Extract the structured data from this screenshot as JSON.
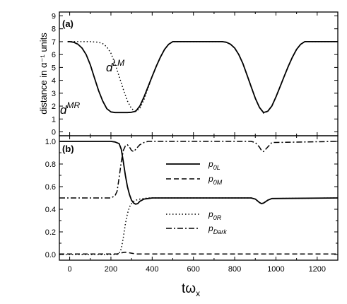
{
  "chart_data": [
    {
      "type": "line",
      "panel_label": "(a)",
      "ylabel": "distance in α⁻¹ units",
      "xlim": [
        -50,
        1300
      ],
      "ylim": [
        -0.3,
        9.3
      ],
      "yticks": [
        "0",
        "1",
        "2",
        "3",
        "4",
        "5",
        "6",
        "7",
        "8",
        "9"
      ],
      "annotations": [
        {
          "text": "d",
          "sup": "LM",
          "series": "dLM"
        },
        {
          "text": "d",
          "sup": "MR",
          "series": "dMR"
        }
      ],
      "series": [
        {
          "id": "dMR",
          "style": "solid",
          "x": [
            -10,
            0,
            20,
            40,
            60,
            80,
            100,
            120,
            140,
            160,
            180,
            200,
            220,
            240,
            260,
            280,
            300,
            320,
            340,
            360,
            380,
            400,
            420,
            440,
            460,
            480,
            500,
            520,
            740,
            760,
            780,
            800,
            820,
            840,
            860,
            880,
            900,
            920,
            940,
            960,
            980,
            1000,
            1020,
            1040,
            1060,
            1080,
            1100,
            1120,
            1140,
            1300
          ],
          "y": [
            7.0,
            7.0,
            6.95,
            6.8,
            6.5,
            6.0,
            5.2,
            4.2,
            3.2,
            2.4,
            1.8,
            1.55,
            1.5,
            1.5,
            1.5,
            1.5,
            1.52,
            1.6,
            2.0,
            2.7,
            3.5,
            4.3,
            5.1,
            5.8,
            6.4,
            6.8,
            7.0,
            7.0,
            7.0,
            6.95,
            6.8,
            6.5,
            6.0,
            5.3,
            4.4,
            3.5,
            2.6,
            1.9,
            1.5,
            1.6,
            2.0,
            2.7,
            3.5,
            4.3,
            5.1,
            5.8,
            6.4,
            6.8,
            7.0,
            7.0
          ]
        },
        {
          "id": "dLM",
          "style": "dotted",
          "x": [
            -10,
            100,
            140,
            160,
            180,
            200,
            220,
            240,
            260,
            280,
            300,
            320,
            340,
            360,
            380,
            400,
            420,
            440,
            460,
            480,
            500,
            520,
            740,
            760,
            780,
            800,
            820,
            840,
            860,
            880,
            900,
            920,
            940,
            960,
            980,
            1000,
            1020,
            1040,
            1060,
            1080,
            1100,
            1120,
            1140,
            1300
          ],
          "y": [
            7.0,
            7.0,
            6.95,
            6.85,
            6.6,
            6.1,
            5.3,
            4.3,
            3.3,
            2.4,
            1.8,
            1.6,
            1.8,
            2.5,
            3.4,
            4.3,
            5.1,
            5.8,
            6.4,
            6.8,
            7.0,
            7.0,
            7.0,
            6.95,
            6.8,
            6.5,
            6.0,
            5.3,
            4.4,
            3.5,
            2.6,
            1.9,
            1.45,
            1.6,
            2.0,
            2.7,
            3.5,
            4.3,
            5.1,
            5.8,
            6.4,
            6.8,
            7.0,
            7.0
          ]
        }
      ]
    },
    {
      "type": "line",
      "panel_label": "(b)",
      "xlabel": "tω",
      "xlabel_sub": "x",
      "xlim": [
        -50,
        1300
      ],
      "ylim": [
        -0.05,
        1.05
      ],
      "xticks": [
        "0",
        "200",
        "400",
        "600",
        "800",
        "1000",
        "1200"
      ],
      "xtick_values": [
        0,
        200,
        400,
        600,
        800,
        1000,
        1200
      ],
      "yticks": [
        "0.0",
        "0.2",
        "0.4",
        "0.6",
        "0.8",
        "1.0"
      ],
      "ytick_values": [
        0.0,
        0.2,
        0.4,
        0.6,
        0.8,
        1.0
      ],
      "legend": [
        {
          "base": "p",
          "sub": "0L",
          "style": "solid"
        },
        {
          "base": "p",
          "sub": "0M",
          "style": "dashed"
        },
        {
          "base": "p",
          "sub": "0R",
          "style": "dotted"
        },
        {
          "base": "p",
          "sub": "Dark",
          "style": "dashdot"
        }
      ],
      "series": [
        {
          "id": "p0L",
          "style": "solid",
          "x": [
            -50,
            200,
            220,
            240,
            250,
            260,
            270,
            280,
            290,
            300,
            310,
            320,
            330,
            340,
            360,
            380,
            400,
            880,
            900,
            920,
            930,
            940,
            960,
            980,
            1300
          ],
          "y": [
            1.0,
            1.0,
            0.995,
            0.98,
            0.93,
            0.82,
            0.7,
            0.6,
            0.53,
            0.48,
            0.455,
            0.445,
            0.45,
            0.47,
            0.49,
            0.495,
            0.5,
            0.5,
            0.49,
            0.46,
            0.45,
            0.455,
            0.48,
            0.495,
            0.5
          ]
        },
        {
          "id": "p0M",
          "style": "dashed",
          "x": [
            -50,
            230,
            250,
            270,
            290,
            320,
            1300
          ],
          "y": [
            0.005,
            0.005,
            0.015,
            0.02,
            0.015,
            0.005,
            0.005
          ]
        },
        {
          "id": "p0R",
          "style": "dotted",
          "x": [
            -50,
            230,
            240,
            250,
            260,
            270,
            280,
            290,
            300,
            310,
            320,
            330,
            340,
            360,
            380,
            400,
            880,
            900,
            920,
            930,
            940,
            960,
            980,
            1300
          ],
          "y": [
            0.0,
            0.0,
            0.01,
            0.05,
            0.15,
            0.27,
            0.36,
            0.42,
            0.45,
            0.47,
            0.48,
            0.485,
            0.49,
            0.495,
            0.5,
            0.5,
            0.5,
            0.49,
            0.46,
            0.45,
            0.455,
            0.48,
            0.495,
            0.5
          ]
        },
        {
          "id": "pDark",
          "style": "dashdot",
          "x": [
            -50,
            200,
            220,
            230,
            240,
            250,
            260,
            270,
            280,
            290,
            300,
            310,
            320,
            340,
            360,
            380,
            400,
            880,
            900,
            920,
            930,
            940,
            960,
            980,
            1300
          ],
          "y": [
            0.5,
            0.5,
            0.52,
            0.56,
            0.68,
            0.82,
            0.92,
            0.96,
            0.97,
            0.95,
            0.92,
            0.91,
            0.93,
            0.97,
            0.99,
            1.0,
            1.0,
            1.0,
            0.99,
            0.95,
            0.92,
            0.91,
            0.95,
            0.99,
            1.0
          ]
        }
      ]
    }
  ]
}
